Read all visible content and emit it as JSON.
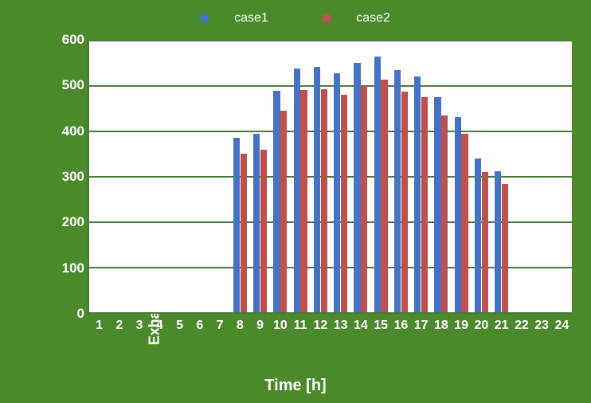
{
  "chart": {
    "type": "bar",
    "background_color": "#4a8a2a",
    "plot_background": "#ffffff",
    "grid_color": "#4a7a3a",
    "xlabel": "Time [h]",
    "ylabel": "Exhaustive heat from HVAC system [W/㎡]",
    "label_color": "#ffffff",
    "label_fontsize": 18,
    "ylim": [
      0,
      600
    ],
    "ytick_step": 100,
    "yticks": [
      0,
      100,
      200,
      300,
      400,
      500,
      600
    ],
    "categories": [
      1,
      2,
      3,
      4,
      5,
      6,
      7,
      8,
      9,
      10,
      11,
      12,
      13,
      14,
      15,
      16,
      17,
      18,
      19,
      20,
      21,
      22,
      23,
      24
    ],
    "legend": {
      "position": "top-center",
      "items": [
        {
          "label": "case1",
          "color": "#4472c4"
        },
        {
          "label": "case2",
          "color": "#c0504d"
        }
      ]
    },
    "series": [
      {
        "name": "case1",
        "color": "#4472c4",
        "values": [
          null,
          null,
          null,
          null,
          null,
          null,
          null,
          385,
          393,
          488,
          536,
          541,
          526,
          549,
          563,
          534,
          519,
          474,
          429,
          338,
          311,
          null,
          null,
          null
        ]
      },
      {
        "name": "case2",
        "color": "#c0504d",
        "values": [
          null,
          null,
          null,
          null,
          null,
          null,
          null,
          350,
          358,
          444,
          490,
          492,
          479,
          498,
          513,
          486,
          474,
          434,
          393,
          308,
          283,
          null,
          null,
          null
        ]
      }
    ],
    "bar_group_width": 0.68,
    "bar_gap": 0.02
  }
}
